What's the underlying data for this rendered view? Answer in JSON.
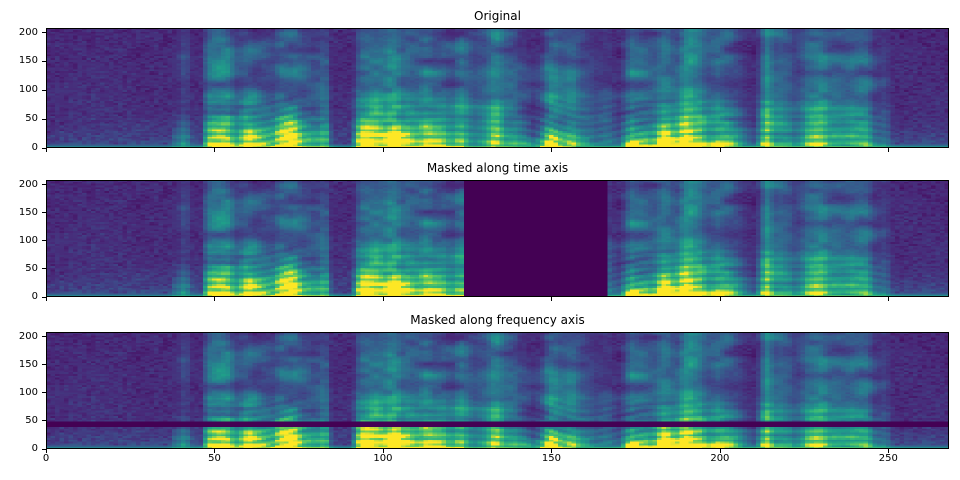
{
  "figure": {
    "background": "#ffffff",
    "spine_color": "#000000",
    "tick_color": "#000000",
    "text_color": "#000000"
  },
  "colormap": {
    "name": "viridis",
    "stops": [
      "#440154",
      "#482878",
      "#3e4989",
      "#31688e",
      "#26828e",
      "#1f9e89",
      "#35b779",
      "#6ece58",
      "#fde725"
    ]
  },
  "chart_data": [
    {
      "type": "heatmap",
      "title": "Original",
      "content": "log-mel speech spectrogram, viridis colormap, energy concentrated below ~70 with harmonic striations, quiet noise floor before t=45 and after t=252",
      "xlim": [
        0,
        268
      ],
      "ylim": [
        0,
        208
      ],
      "x_ticks": [
        0,
        50,
        100,
        150,
        200,
        250
      ],
      "y_ticks": [
        0,
        50,
        100,
        150,
        200
      ],
      "x_tick_labels_visible": false,
      "mask": null,
      "time_envelope": [
        [
          0,
          0
        ],
        [
          36,
          0
        ],
        [
          38,
          0.3
        ],
        [
          41,
          0.42
        ],
        [
          44,
          0.18
        ],
        [
          46,
          0.25
        ],
        [
          48,
          0.9
        ],
        [
          52,
          1.0
        ],
        [
          58,
          0.95
        ],
        [
          63,
          1.0
        ],
        [
          68,
          0.8
        ],
        [
          72,
          0.95
        ],
        [
          78,
          0.9
        ],
        [
          83,
          0.85
        ],
        [
          85,
          0.25
        ],
        [
          87,
          0.1
        ],
        [
          90,
          0.12
        ],
        [
          92,
          0.7
        ],
        [
          96,
          0.95
        ],
        [
          103,
          1.0
        ],
        [
          112,
          0.95
        ],
        [
          118,
          1.0
        ],
        [
          123,
          0.9
        ],
        [
          127,
          0.6
        ],
        [
          131,
          0.8
        ],
        [
          136,
          0.85
        ],
        [
          141,
          0.6
        ],
        [
          145,
          0.4
        ],
        [
          149,
          0.75
        ],
        [
          153,
          0.7
        ],
        [
          158,
          0.55
        ],
        [
          163,
          0.5
        ],
        [
          167,
          0.45
        ],
        [
          170,
          0.5
        ],
        [
          174,
          0.9
        ],
        [
          180,
          1.0
        ],
        [
          188,
          0.95
        ],
        [
          196,
          1.0
        ],
        [
          203,
          0.9
        ],
        [
          207,
          0.5
        ],
        [
          210,
          0.45
        ],
        [
          214,
          0.85
        ],
        [
          218,
          0.8
        ],
        [
          222,
          0.6
        ],
        [
          227,
          0.75
        ],
        [
          232,
          0.7
        ],
        [
          238,
          0.65
        ],
        [
          244,
          0.6
        ],
        [
          249,
          0.45
        ],
        [
          252,
          0.2
        ],
        [
          256,
          0.12
        ],
        [
          268,
          0.1
        ]
      ]
    },
    {
      "type": "heatmap",
      "title": "Masked along time axis",
      "content": "same spectrogram with SpecAugment time mask (columns zeroed to colormap minimum)",
      "xlim": [
        0,
        268
      ],
      "ylim": [
        0,
        208
      ],
      "x_ticks": [
        0,
        50,
        100,
        150,
        200,
        250
      ],
      "y_ticks": [
        0,
        50,
        100,
        150,
        200
      ],
      "x_tick_labels_visible": false,
      "mask": {
        "axis": "time",
        "from": 124,
        "to": 167
      }
    },
    {
      "type": "heatmap",
      "title": "Masked along frequency axis",
      "content": "same spectrogram with SpecAugment frequency mask (rows zeroed to colormap minimum)",
      "xlim": [
        0,
        268
      ],
      "ylim": [
        0,
        208
      ],
      "x_ticks": [
        0,
        50,
        100,
        150,
        200,
        250
      ],
      "y_ticks": [
        0,
        50,
        100,
        150,
        200
      ],
      "x_tick_labels_visible": true,
      "mask": {
        "axis": "frequency",
        "from": 39,
        "to": 50
      }
    }
  ]
}
